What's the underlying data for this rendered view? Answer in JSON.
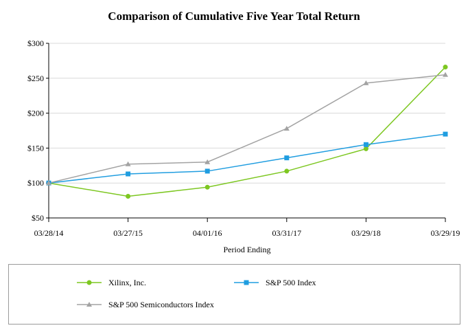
{
  "chart_data": {
    "type": "line",
    "title": "Comparison of Cumulative Five Year Total Return",
    "xlabel": "Period Ending",
    "ylabel": "",
    "categories": [
      "03/28/14",
      "03/27/15",
      "04/01/16",
      "03/31/17",
      "03/29/18",
      "03/29/19"
    ],
    "ylim": [
      50,
      300
    ],
    "yticks": [
      50,
      100,
      150,
      200,
      250,
      300
    ],
    "ytick_labels": [
      "$50",
      "$100",
      "$150",
      "$200",
      "$250",
      "$300"
    ],
    "grid": "horizontal",
    "legend_position": "bottom",
    "series": [
      {
        "name": "Xilinx, Inc.",
        "marker": "circle",
        "color": "#7dc721",
        "values": [
          100,
          81,
          94,
          117,
          149,
          266
        ]
      },
      {
        "name": "S&P 500 Index",
        "marker": "square",
        "color": "#1f9de0",
        "values": [
          100,
          113,
          117,
          136,
          155,
          170
        ]
      },
      {
        "name": "S&P 500 Semiconductors Index",
        "marker": "triangle",
        "color": "#a3a3a3",
        "values": [
          100,
          127,
          130,
          178,
          243,
          255
        ]
      }
    ]
  }
}
